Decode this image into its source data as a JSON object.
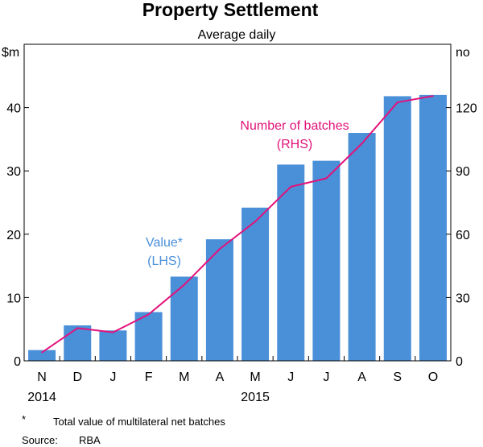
{
  "chart_data": {
    "type": "bar+line",
    "title": "Property Settlement",
    "subtitle": "Average daily",
    "categories": [
      "N",
      "D",
      "J",
      "F",
      "M",
      "A",
      "M",
      "J",
      "J",
      "A",
      "S",
      "O"
    ],
    "year_labels": [
      {
        "label": "2014",
        "category_index": 0
      },
      {
        "label": "2015",
        "category_index": 6
      }
    ],
    "left_axis": {
      "unit": "$m",
      "min": 0,
      "max": 50,
      "ticks": [
        0,
        10,
        20,
        30,
        40
      ]
    },
    "right_axis": {
      "unit": "no",
      "min": 0,
      "max": 150,
      "ticks": [
        0,
        30,
        60,
        90,
        120
      ]
    },
    "series": [
      {
        "name": "Value*",
        "axis_note": "(LHS)",
        "kind": "bar",
        "axis": "left",
        "color": "#4a90d9",
        "values": [
          1.7,
          5.6,
          4.8,
          7.7,
          13.3,
          19.2,
          24.2,
          31.0,
          31.6,
          36.0,
          41.8,
          42.0
        ]
      },
      {
        "name": "Number of batches",
        "axis_note": "(RHS)",
        "kind": "line",
        "axis": "right",
        "color": "#e2127a",
        "values": [
          4,
          15.5,
          13.5,
          22,
          36,
          53,
          66,
          82.5,
          86.5,
          103,
          122.5,
          125.5
        ]
      }
    ],
    "footnote_marker": "*",
    "footnote": "Total value of multilateral net batches",
    "source_label": "Source:",
    "source": "RBA"
  }
}
